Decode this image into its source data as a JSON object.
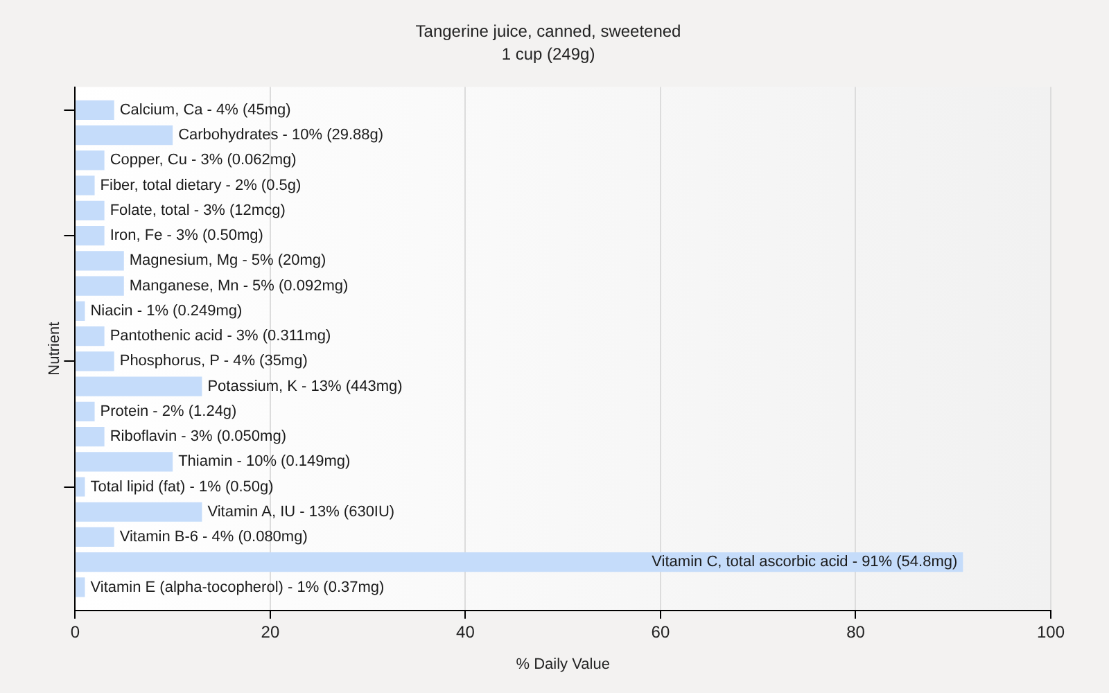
{
  "chart_data": {
    "type": "bar",
    "orientation": "horizontal",
    "title": "Tangerine juice, canned, sweetened",
    "subtitle": "1 cup (249g)",
    "xlabel": "% Daily Value",
    "ylabel": "Nutrient",
    "categories": [
      "Calcium, Ca - 4% (45mg)",
      "Carbohydrates - 10% (29.88g)",
      "Copper, Cu - 3% (0.062mg)",
      "Fiber, total dietary - 2% (0.5g)",
      "Folate, total - 3% (12mcg)",
      "Iron, Fe - 3% (0.50mg)",
      "Magnesium, Mg - 5% (20mg)",
      "Manganese, Mn - 5% (0.092mg)",
      "Niacin - 1% (0.249mg)",
      "Pantothenic acid - 3% (0.311mg)",
      "Phosphorus, P - 4% (35mg)",
      "Potassium, K - 13% (443mg)",
      "Protein - 2% (1.24g)",
      "Riboflavin - 3% (0.050mg)",
      "Thiamin - 10% (0.149mg)",
      "Total lipid (fat) - 1% (0.50g)",
      "Vitamin A, IU - 13% (630IU)",
      "Vitamin B-6 - 4% (0.080mg)",
      "Vitamin C, total ascorbic acid - 91% (54.8mg)",
      "Vitamin E (alpha-tocopherol) - 1% (0.37mg)"
    ],
    "values": [
      4,
      10,
      3,
      2,
      3,
      3,
      5,
      5,
      1,
      3,
      4,
      13,
      2,
      3,
      10,
      1,
      13,
      4,
      91,
      1
    ],
    "color": "#c5dcfa",
    "xlim": [
      0,
      100
    ],
    "xticks": [
      0,
      20,
      40,
      60,
      80,
      100
    ],
    "grid": "x",
    "tick_labels": "x"
  }
}
